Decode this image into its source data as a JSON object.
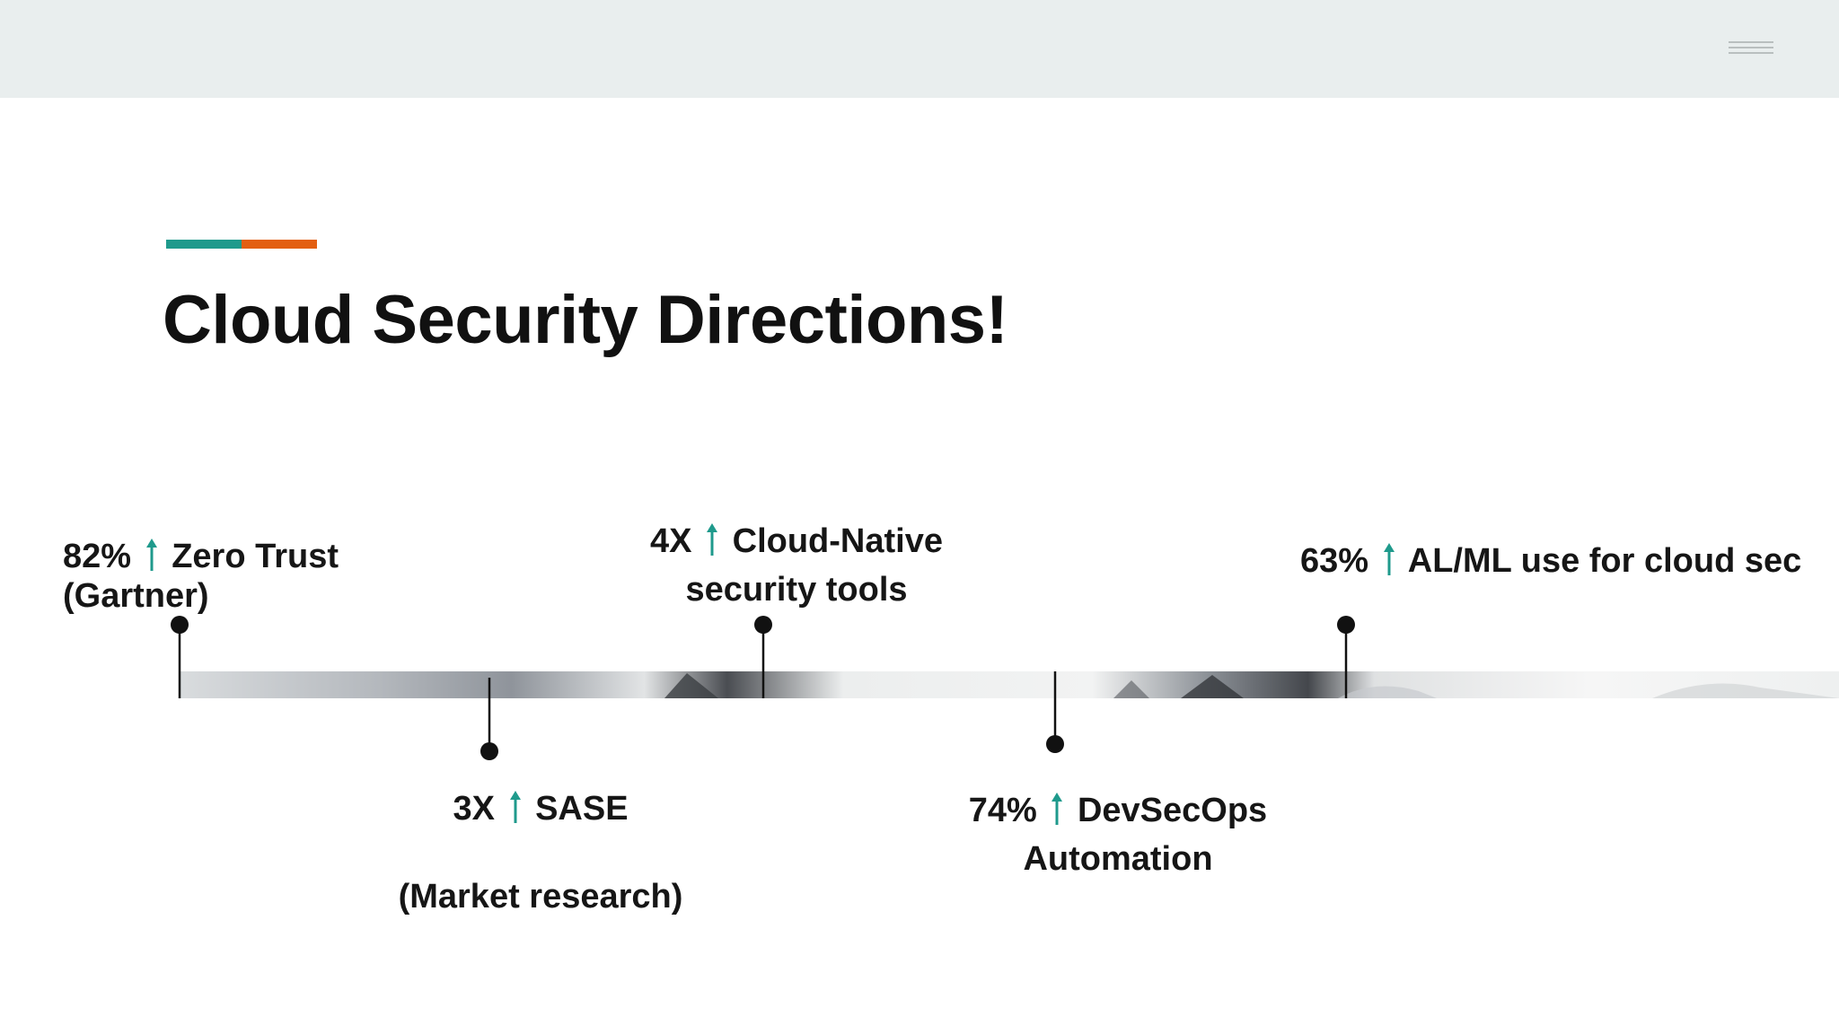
{
  "slide": {
    "title": "Cloud Security Directions!",
    "accent_colors": {
      "teal": "#1f9a8c",
      "orange": "#e35f12"
    },
    "arrow_color": "#1f9a8c",
    "arrow_icon": "arrow-up-icon"
  },
  "milestones": [
    {
      "value": "82%",
      "text": "Zero Trust",
      "line2": "(Gartner)"
    },
    {
      "value": "3X",
      "text": "SASE",
      "line2": "(Market research)"
    },
    {
      "value": "4X",
      "text": "Cloud-Native",
      "line2": "security tools"
    },
    {
      "value": "74%",
      "text": "DevSecOps",
      "line2": "Automation"
    },
    {
      "value": "63%",
      "text": "AL/ML use for cloud sec"
    }
  ]
}
